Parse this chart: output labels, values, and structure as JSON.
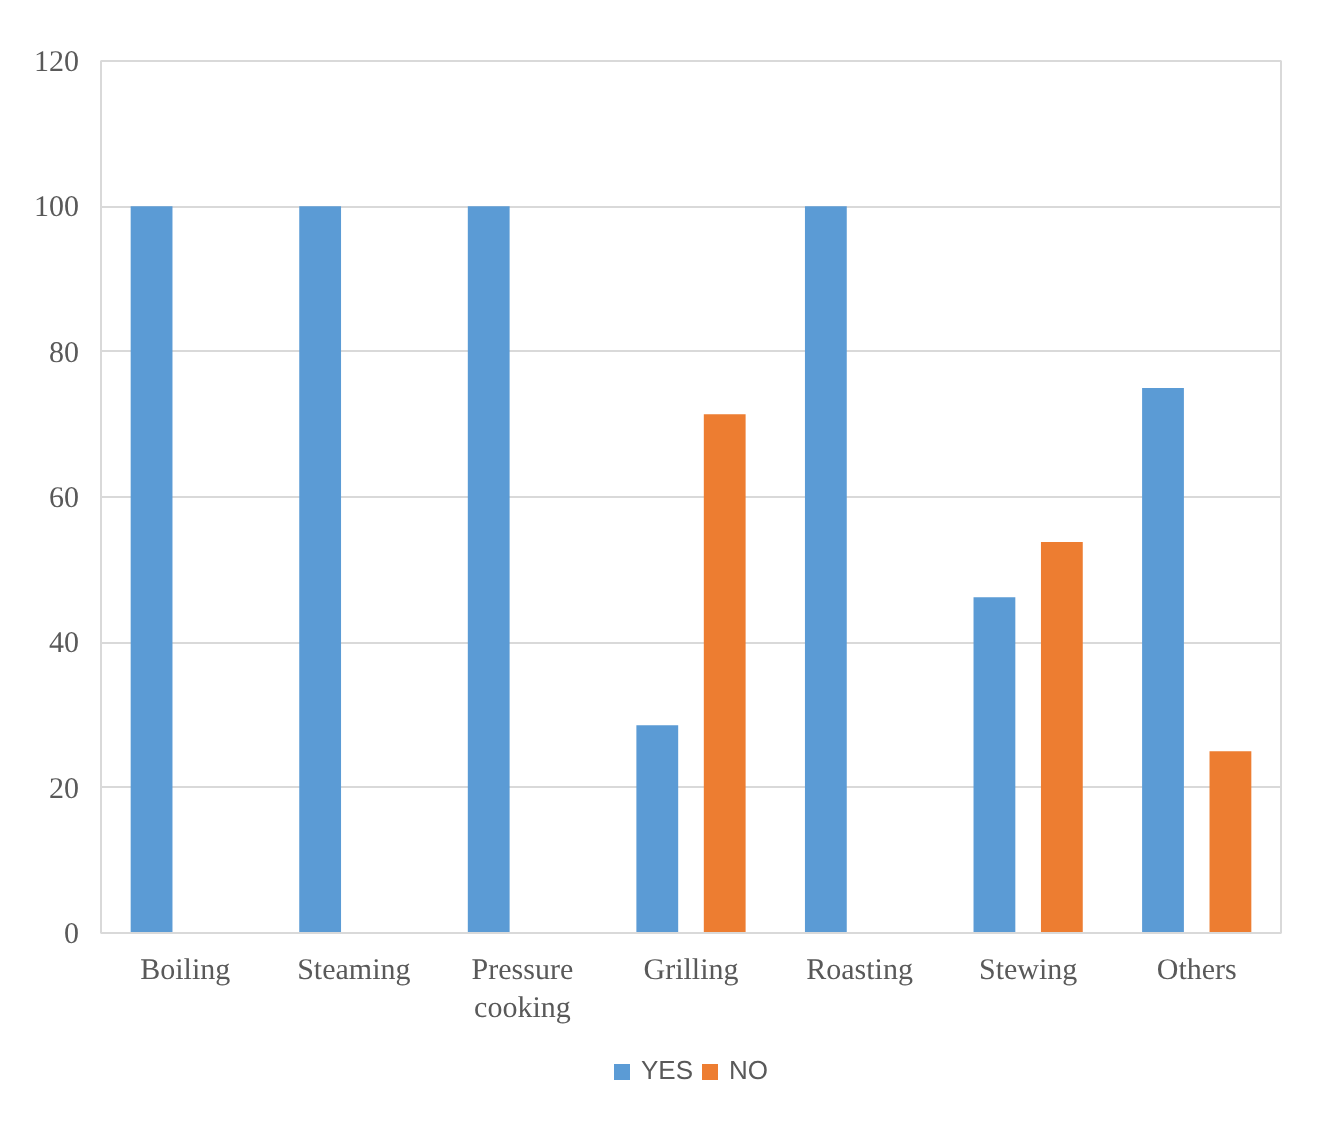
{
  "chart_data": {
    "type": "bar",
    "categories": [
      "Boiling",
      "Steaming",
      "Pressure cooking",
      "Grilling",
      "Roasting",
      "Stewing",
      "Others"
    ],
    "series": [
      {
        "name": "YES",
        "color": "#5b9bd5",
        "values": [
          100,
          100,
          100,
          28.6,
          100,
          46.2,
          75
        ]
      },
      {
        "name": "NO",
        "color": "#ed7d31",
        "values": [
          0,
          0,
          0,
          71.4,
          0,
          53.8,
          25
        ]
      }
    ],
    "ylim": [
      0,
      120
    ],
    "yticks": [
      0,
      20,
      40,
      60,
      80,
      100,
      120
    ],
    "grid": "y",
    "legend": "bottom"
  }
}
